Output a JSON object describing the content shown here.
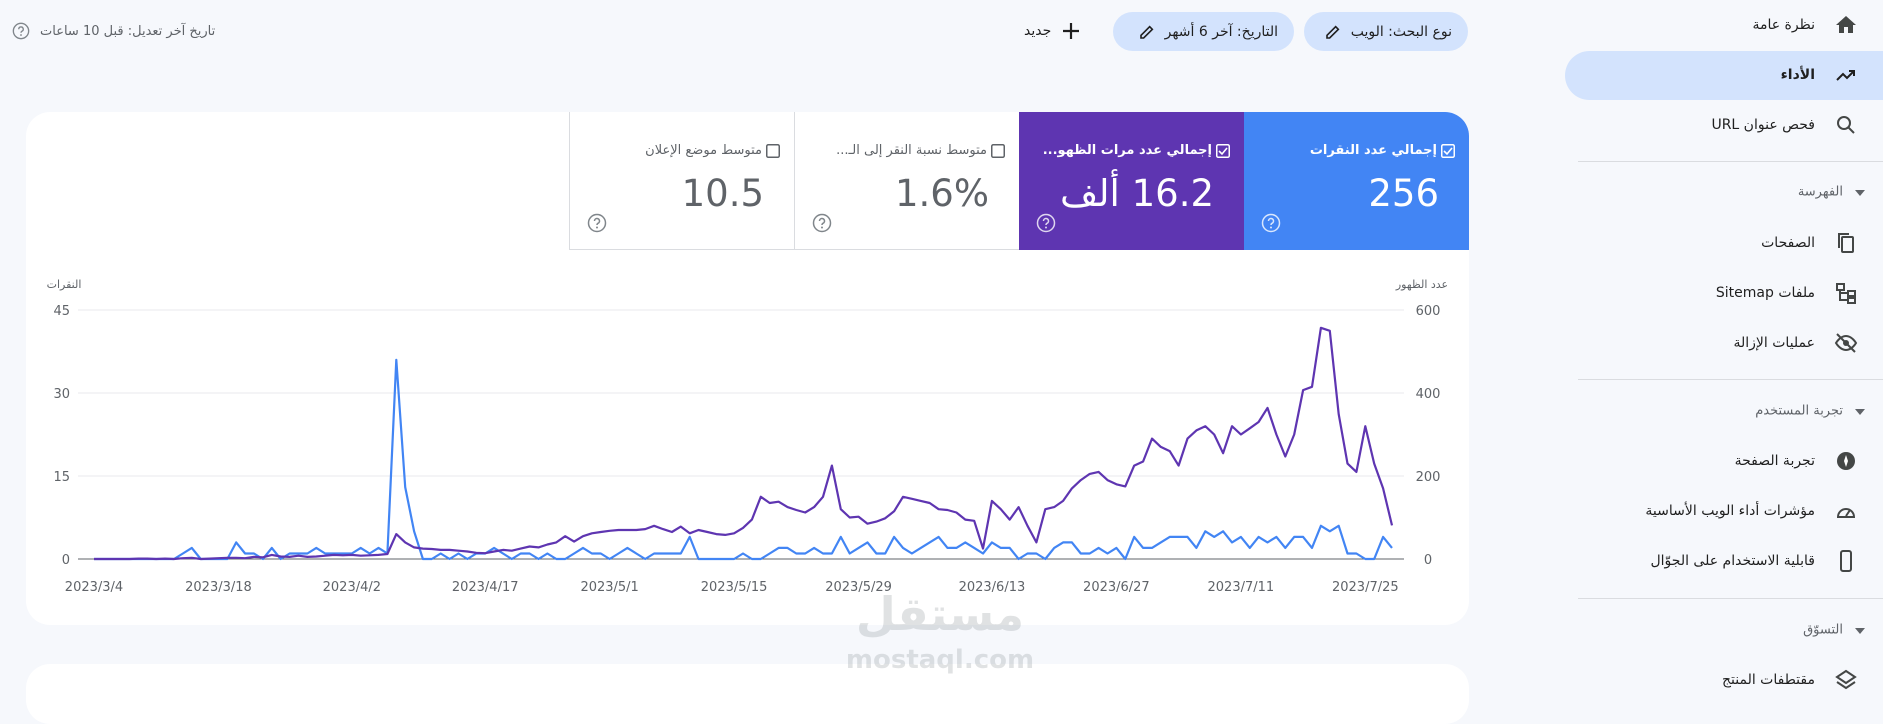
{
  "nav": {
    "top": [
      "نظرة عامة",
      "الأداء",
      "فحص عنوان URL"
    ],
    "sections": [
      {
        "title": "الفهرسة",
        "items": [
          "الصفحات",
          "ملفات Sitemap",
          "عمليات الإزالة"
        ]
      },
      {
        "title": "تجربة المستخدم",
        "items": [
          "تجربة الصفحة",
          "مؤشرات أداء الويب الأساسية",
          "قابلية الاستخدام على الجوّال"
        ]
      },
      {
        "title": "التسوّق",
        "items": [
          "مقتطفات المنتج"
        ]
      }
    ]
  },
  "toolbar": {
    "chips": [
      "نوع البحث: الويب",
      "التاريخ: آخر 6 أشهر"
    ],
    "new": "جديد",
    "last_updated": "تاريخ آخر تعديل: قبل 10 ساعات"
  },
  "metrics": [
    {
      "label": "إجمالي عدد النقرات",
      "value": "256",
      "selected": true,
      "color": "#4285f4"
    },
    {
      "label": "إجمالي عدد مرات الظهو...",
      "value": "16.2 ألف",
      "selected": true,
      "color": "#5e35b1"
    },
    {
      "label": "متوسط نسبة النقر إلى الـ...",
      "value": "1.6%",
      "selected": false
    },
    {
      "label": "متوسط موضع الإعلان",
      "value": "10.5",
      "selected": false
    }
  ],
  "chart_data": {
    "type": "line",
    "ylabel": "النقرات",
    "y2label": "عدد الظهور",
    "categories": [
      "2023/3/4",
      null,
      null,
      null,
      null,
      null,
      null,
      null,
      null,
      null,
      null,
      null,
      null,
      null,
      "2023/3/18",
      null,
      null,
      null,
      null,
      null,
      null,
      null,
      null,
      null,
      null,
      null,
      null,
      null,
      null,
      "2023/4/2",
      null,
      null,
      null,
      null,
      null,
      null,
      null,
      null,
      null,
      null,
      null,
      null,
      null,
      null,
      "2023/4/17",
      null,
      null,
      null,
      null,
      null,
      null,
      null,
      null,
      null,
      null,
      null,
      null,
      null,
      "2023/5/1",
      null,
      null,
      null,
      null,
      null,
      null,
      null,
      null,
      null,
      null,
      null,
      null,
      null,
      "2023/5/15",
      null,
      null,
      null,
      null,
      null,
      null,
      null,
      null,
      null,
      null,
      null,
      null,
      null,
      "2023/5/29",
      null,
      null,
      null,
      null,
      null,
      null,
      null,
      null,
      null,
      null,
      null,
      null,
      null,
      null,
      "2023/6/13",
      null,
      null,
      null,
      null,
      null,
      null,
      null,
      null,
      null,
      null,
      null,
      null,
      null,
      "2023/6/27",
      null,
      null,
      null,
      null,
      null,
      null,
      null,
      null,
      null,
      null,
      null,
      null,
      null,
      "2023/7/11",
      null,
      null,
      null,
      null,
      null,
      null,
      null,
      null,
      null,
      null,
      null,
      null,
      null,
      "2023/7/25",
      null,
      null,
      null
    ],
    "series": [
      {
        "color": "#4285f4",
        "axis": "y",
        "values": [
          0,
          0,
          0,
          0,
          0,
          0,
          0,
          0,
          0,
          0,
          1,
          2,
          0,
          0,
          0,
          0,
          3,
          1,
          1,
          0,
          2,
          0,
          1,
          1,
          1,
          2,
          1,
          1,
          1,
          1,
          2,
          1,
          2,
          1,
          36,
          13,
          5,
          0,
          0,
          1,
          0,
          1,
          0,
          1,
          1,
          2,
          1,
          0,
          1,
          1,
          0,
          1,
          0,
          0,
          1,
          2,
          1,
          1,
          0,
          1,
          2,
          1,
          0,
          1,
          1,
          1,
          1,
          4,
          0,
          0,
          0,
          0,
          0,
          1,
          0,
          0,
          1,
          2,
          2,
          1,
          1,
          2,
          1,
          1,
          4,
          1,
          2,
          3,
          1,
          1,
          4,
          2,
          1,
          2,
          3,
          4,
          2,
          2,
          3,
          2,
          1,
          3,
          2,
          2,
          0,
          1,
          1,
          0,
          2,
          3,
          3,
          1,
          1,
          2,
          1,
          2,
          0,
          4,
          2,
          2,
          3,
          4,
          4,
          4,
          2,
          5,
          4,
          5,
          3,
          4,
          2,
          4,
          3,
          4,
          2,
          4,
          4,
          2,
          6,
          5,
          6,
          1,
          1,
          0,
          0,
          4,
          2
        ]
      },
      {
        "color": "#5e35b1",
        "axis": "y2",
        "values": [
          0,
          0,
          0,
          0,
          0,
          1,
          1,
          0,
          1,
          0,
          2,
          3,
          0,
          1,
          2,
          3,
          3,
          2,
          5,
          4,
          10,
          6,
          5,
          8,
          5,
          6,
          8,
          10,
          9,
          10,
          8,
          9,
          10,
          12,
          60,
          40,
          28,
          25,
          24,
          22,
          22,
          20,
          18,
          15,
          14,
          18,
          22,
          20,
          25,
          30,
          28,
          35,
          40,
          55,
          42,
          55,
          62,
          65,
          68,
          70,
          70,
          70,
          72,
          80,
          72,
          65,
          78,
          62,
          70,
          65,
          60,
          58,
          62,
          75,
          95,
          150,
          135,
          138,
          125,
          118,
          112,
          125,
          150,
          225,
          120,
          100,
          102,
          85,
          90,
          98,
          115,
          150,
          145,
          140,
          135,
          120,
          118,
          112,
          95,
          92,
          25,
          140,
          120,
          95,
          125,
          80,
          40,
          120,
          125,
          140,
          170,
          190,
          205,
          210,
          190,
          180,
          175,
          225,
          235,
          290,
          270,
          260,
          225,
          290,
          310,
          320,
          300,
          255,
          320,
          300,
          315,
          330,
          364,
          300,
          247,
          300,
          407,
          415,
          557,
          550,
          349,
          230,
          210,
          320,
          230,
          170,
          81
        ]
      }
    ],
    "ylim": [
      0,
      45
    ],
    "yticks": [
      0,
      15,
      30,
      45
    ],
    "y2lim": [
      0,
      600
    ],
    "y2ticks": [
      0,
      200,
      400,
      600
    ],
    "grid": true
  },
  "watermark": [
    "مستقل",
    "mostaql.com"
  ]
}
